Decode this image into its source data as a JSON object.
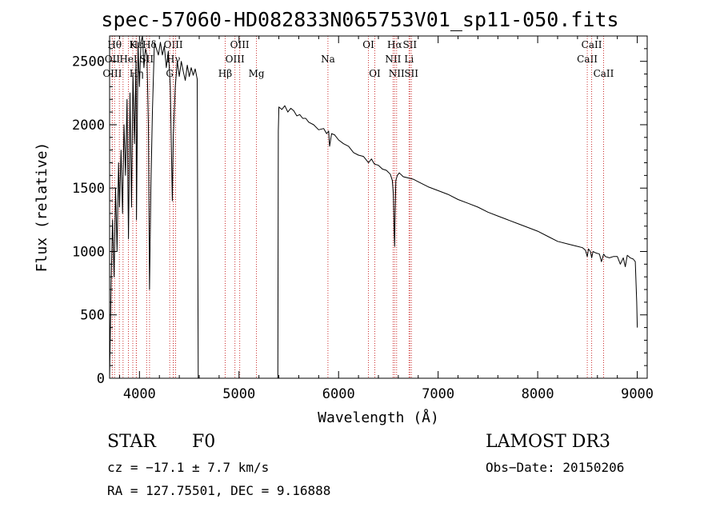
{
  "chart_data": {
    "type": "line",
    "title": "spec-57060-HD082833N065753V01_sp11-050.fits",
    "xlabel": "Wavelength (Å)",
    "ylabel": "Flux (relative)",
    "xlim": [
      3700,
      9100
    ],
    "ylim": [
      0,
      2700
    ],
    "x_ticks": [
      4000,
      5000,
      6000,
      7000,
      8000,
      9000
    ],
    "x_tick_labels": [
      "4000",
      "5000",
      "6000",
      "7000",
      "8000",
      "9000"
    ],
    "y_ticks": [
      0,
      500,
      1000,
      1500,
      2000,
      2500
    ],
    "y_tick_labels": [
      "0",
      "500",
      "1000",
      "1500",
      "2000",
      "2500"
    ],
    "series": [
      {
        "name": "spectrum",
        "color": "#000000",
        "segments": [
          {
            "x": [
              3700,
              3715,
              3730,
              3745,
              3760,
              3775,
              3790,
              3800,
              3815,
              3830,
              3845,
              3860,
              3875,
              3890,
              3905,
              3920,
              3935,
              3950,
              3965,
              3970,
              3985,
              4000,
              4015,
              4030,
              4045,
              4060,
              4075,
              4090,
              4101,
              4115,
              4130,
              4150,
              4170,
              4190,
              4210,
              4230,
              4250,
              4270,
              4290,
              4310,
              4330,
              4340,
              4360,
              4380,
              4400,
              4420,
              4440,
              4460,
              4480,
              4500,
              4520,
              4540,
              4560,
              4580,
              4590
            ],
            "y": [
              0,
              750,
              1250,
              800,
              1500,
              1000,
              1700,
              1350,
              1800,
              1300,
              2000,
              1600,
              2200,
              1100,
              2250,
              1350,
              2400,
              1850,
              2500,
              1250,
              2650,
              2300,
              2650,
              2700,
              2450,
              2600,
              2550,
              2000,
              700,
              1500,
              2100,
              2650,
              2600,
              2550,
              2650,
              2550,
              2620,
              2450,
              2580,
              2300,
              1400,
              1900,
              2300,
              2500,
              2380,
              2500,
              2420,
              2350,
              2470,
              2380,
              2450,
              2390,
              2440,
              2360,
              0
            ]
          },
          {
            "x": [
              5390,
              5395,
              5400,
              5430,
              5460,
              5490,
              5520,
              5550,
              5580,
              5610,
              5640,
              5670,
              5700,
              5750,
              5800,
              5850,
              5880,
              5900,
              5910,
              5930,
              5960,
              6000,
              6050,
              6100,
              6150,
              6200,
              6250,
              6280,
              6300,
              6330,
              6360,
              6400,
              6440,
              6480,
              6520,
              6540,
              6550,
              6558,
              6563,
              6568,
              6575,
              6590,
              6610,
              6650,
              6700,
              6750,
              6800,
              6900,
              7000,
              7100,
              7200,
              7300,
              7400,
              7500,
              7600,
              7700,
              7800,
              7900,
              8000,
              8100,
              8200,
              8300,
              8400,
              8450,
              8480,
              8498,
              8510,
              8530,
              8542,
              8555,
              8580,
              8620,
              8640,
              8662,
              8680,
              8720,
              8760,
              8800,
              8830,
              8860,
              8880,
              8900,
              8930,
              8960,
              8980,
              8995,
              9000
            ],
            "y": [
              0,
              1950,
              2140,
              2120,
              2150,
              2100,
              2130,
              2110,
              2070,
              2080,
              2050,
              2050,
              2020,
              2000,
              1960,
              1970,
              1930,
              1950,
              1830,
              1930,
              1920,
              1880,
              1850,
              1830,
              1780,
              1760,
              1750,
              1720,
              1700,
              1730,
              1690,
              1680,
              1650,
              1640,
              1610,
              1560,
              1450,
              1150,
              1040,
              1300,
              1560,
              1600,
              1620,
              1590,
              1580,
              1570,
              1550,
              1510,
              1480,
              1450,
              1410,
              1380,
              1350,
              1310,
              1280,
              1250,
              1220,
              1190,
              1160,
              1120,
              1080,
              1060,
              1040,
              1030,
              1010,
              960,
              1020,
              1000,
              950,
              1000,
              990,
              980,
              920,
              980,
              960,
              950,
              960,
              960,
              900,
              950,
              880,
              970,
              950,
              940,
              920,
              600,
              400
            ]
          }
        ]
      }
    ],
    "line_markers": {
      "color": "#cc3333",
      "lines": [
        {
          "w": 3750,
          "label": "Hθ",
          "row": 1
        },
        {
          "w": 3727,
          "label": "OII",
          "row": 2
        },
        {
          "w": 3727,
          "label": "OIII",
          "row": 3
        },
        {
          "w": 3798,
          "label": "",
          "row": 0
        },
        {
          "w": 3835,
          "label": "",
          "row": 0
        },
        {
          "w": 3889,
          "label": "HeI",
          "row": 2
        },
        {
          "w": 3933,
          "label": "K",
          "row": 1
        },
        {
          "w": 3968,
          "label": "Hε",
          "row": 1
        },
        {
          "w": 3970,
          "label": "Hη",
          "row": 3
        },
        {
          "w": 4072,
          "label": "SII",
          "row": 2
        },
        {
          "w": 4101,
          "label": "Hδ",
          "row": 1
        },
        {
          "w": 4340,
          "label": "OIII",
          "row": 1
        },
        {
          "w": 4340,
          "label": "Hγ",
          "row": 2
        },
        {
          "w": 4304,
          "label": "G",
          "row": 3
        },
        {
          "w": 4363,
          "label": "",
          "row": 0
        },
        {
          "w": 4861,
          "label": "Hβ",
          "row": 3
        },
        {
          "w": 4959,
          "label": "OIII",
          "row": 2
        },
        {
          "w": 5007,
          "label": "OIII",
          "row": 1
        },
        {
          "w": 5175,
          "label": "Mg",
          "row": 3
        },
        {
          "w": 5893,
          "label": "Na",
          "row": 2
        },
        {
          "w": 6300,
          "label": "OI",
          "row": 1
        },
        {
          "w": 6364,
          "label": "OI",
          "row": 3
        },
        {
          "w": 6548,
          "label": "NII",
          "row": 2
        },
        {
          "w": 6563,
          "label": "Hα",
          "row": 1
        },
        {
          "w": 6583,
          "label": "NII",
          "row": 3
        },
        {
          "w": 6708,
          "label": "Li",
          "row": 2
        },
        {
          "w": 6716,
          "label": "SII",
          "row": 1
        },
        {
          "w": 6731,
          "label": "SII",
          "row": 3
        },
        {
          "w": 8498,
          "label": "CaII",
          "row": 2
        },
        {
          "w": 8542,
          "label": "CaII",
          "row": 1
        },
        {
          "w": 8662,
          "label": "CaII",
          "row": 3
        }
      ]
    }
  },
  "footer": {
    "object_type": "STAR",
    "subclass": "F0",
    "survey": "LAMOST DR3",
    "redshift": "cz = −17.1 ± 7.7 km/s",
    "obs_date": "Obs−Date: 20150206",
    "coords": "RA = 127.75501, DEC =   9.16888"
  }
}
